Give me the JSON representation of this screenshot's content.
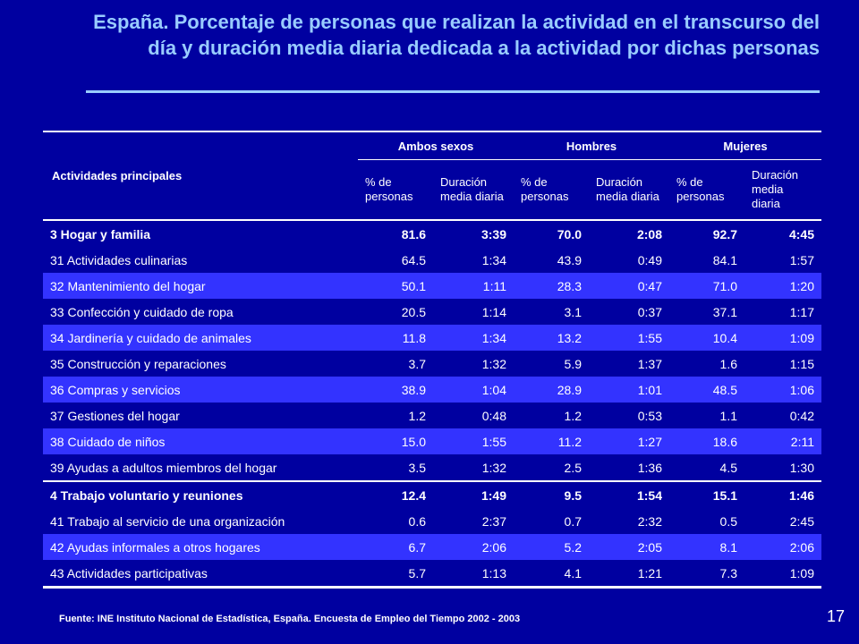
{
  "title": "España. Porcentaje de personas que realizan la actividad en el transcurso del día y duración media diaria dedicada a la actividad por dichas personas",
  "table": {
    "activity_header": "Actividades principales",
    "groups": [
      "Ambos sexos",
      "Hombres",
      "Mujeres"
    ],
    "subheaders": {
      "pct": "% de personas",
      "dur": "Duración media diaria"
    },
    "rows": [
      {
        "label": "3 Hogar y familia",
        "values": [
          "81.6",
          "3:39",
          "70.0",
          "2:08",
          "92.7",
          "4:45"
        ]
      },
      {
        "label": "31 Actividades culinarias",
        "values": [
          "64.5",
          "1:34",
          "43.9",
          "0:49",
          "84.1",
          "1:57"
        ]
      },
      {
        "label": "32 Mantenimiento del hogar",
        "values": [
          "50.1",
          "1:11",
          "28.3",
          "0:47",
          "71.0",
          "1:20"
        ]
      },
      {
        "label": "33 Confección y cuidado de ropa",
        "values": [
          "20.5",
          "1:14",
          "3.1",
          "0:37",
          "37.1",
          "1:17"
        ]
      },
      {
        "label": "34 Jardinería y cuidado de animales",
        "values": [
          "11.8",
          "1:34",
          "13.2",
          "1:55",
          "10.4",
          "1:09"
        ]
      },
      {
        "label": "35 Construcción y reparaciones",
        "values": [
          "3.7",
          "1:32",
          "5.9",
          "1:37",
          "1.6",
          "1:15"
        ]
      },
      {
        "label": "36 Compras y servicios",
        "values": [
          "38.9",
          "1:04",
          "28.9",
          "1:01",
          "48.5",
          "1:06"
        ]
      },
      {
        "label": "37 Gestiones del hogar",
        "values": [
          "1.2",
          "0:48",
          "1.2",
          "0:53",
          "1.1",
          "0:42"
        ]
      },
      {
        "label": "38 Cuidado de niños",
        "values": [
          "15.0",
          "1:55",
          "11.2",
          "1:27",
          "18.6",
          "2:11"
        ]
      },
      {
        "label": "39 Ayudas a adultos miembros del hogar",
        "values": [
          "3.5",
          "1:32",
          "2.5",
          "1:36",
          "4.5",
          "1:30"
        ]
      },
      {
        "label": "4 Trabajo voluntario y reuniones",
        "values": [
          "12.4",
          "1:49",
          "9.5",
          "1:54",
          "15.1",
          "1:46"
        ]
      },
      {
        "label": "41 Trabajo al servicio de una organización",
        "values": [
          "0.6",
          "2:37",
          "0.7",
          "2:32",
          "0.5",
          "2:45"
        ]
      },
      {
        "label": "42 Ayudas informales a otros hogares",
        "values": [
          "6.7",
          "2:06",
          "5.2",
          "2:05",
          "8.1",
          "2:06"
        ]
      },
      {
        "label": "43 Actividades participativas",
        "values": [
          "5.7",
          "1:13",
          "4.1",
          "1:21",
          "7.3",
          "1:09"
        ]
      }
    ]
  },
  "source": "Fuente: INE Instituto Nacional de Estadística, España. Encuesta de Empleo del Tiempo 2002 - 2003",
  "page_number": "17",
  "colors": {
    "background": "#0000A0",
    "title": "#99CCFF",
    "alt_row": "#3333FF",
    "text": "#FFFFFF"
  }
}
